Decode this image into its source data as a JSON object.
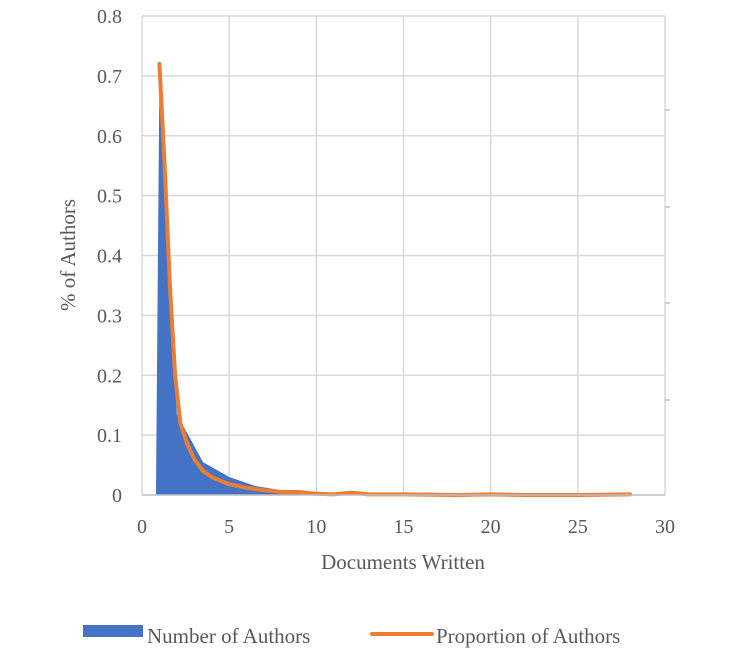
{
  "chart_data": {
    "type": "area",
    "xlabel": "Documents Written",
    "ylabel": "% of Authors",
    "xlim": [
      0,
      30
    ],
    "ylim": [
      0,
      0.8
    ],
    "x_ticks": [
      "0",
      "5",
      "10",
      "15",
      "20",
      "25",
      "30"
    ],
    "y_ticks": [
      "0",
      "0.1",
      "0.2",
      "0.3",
      "0.4",
      "0.5",
      "0.6",
      "0.7",
      "0.8"
    ],
    "grid": true,
    "legend_position": "bottom",
    "series": [
      {
        "name": "Number of Authors",
        "kind": "area",
        "color": "#4472c4",
        "x": [
          0.8,
          1,
          2,
          3.5,
          5,
          6.5,
          8,
          9,
          10,
          11,
          12,
          13,
          15,
          16.5,
          18,
          20,
          22,
          25,
          28
        ],
        "y": [
          0.0,
          0.7,
          0.135,
          0.055,
          0.03,
          0.015,
          0.008,
          0.006,
          0.004,
          0.003,
          0.004,
          0.002,
          0.002,
          0.004,
          0.001,
          0.002,
          0.001,
          0.001,
          0.002
        ]
      },
      {
        "name": "Proportion of Authors",
        "kind": "line",
        "color": "#ed7d31",
        "x": [
          1,
          1.3,
          1.6,
          1.9,
          2.2,
          2.6,
          3,
          3.5,
          4,
          5,
          6,
          7,
          8,
          9,
          10,
          11,
          12,
          13,
          15,
          18,
          20,
          22,
          25,
          28
        ],
        "y": [
          0.72,
          0.55,
          0.35,
          0.2,
          0.12,
          0.085,
          0.06,
          0.04,
          0.03,
          0.018,
          0.012,
          0.008,
          0.005,
          0.005,
          0.002,
          0.001,
          0.004,
          0.001,
          0.001,
          0.0,
          0.001,
          0.0,
          0.0,
          0.001
        ]
      }
    ]
  }
}
